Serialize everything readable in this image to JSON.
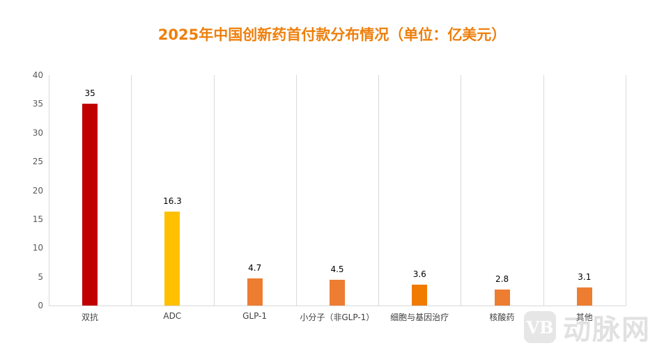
{
  "title": "2025年中国创新药首付款分布情况（单位：亿美元）",
  "watermark": {
    "logo": "VB",
    "text": "动脉网"
  },
  "chart_data": {
    "type": "bar",
    "title": "2025年中国创新药首付款分布情况（单位：亿美元）",
    "xlabel": "",
    "ylabel": "",
    "ylim": [
      0,
      40
    ],
    "yticks": [
      0,
      5,
      10,
      15,
      20,
      25,
      30,
      35,
      40
    ],
    "grid": "vertical",
    "legend": "none",
    "categories": [
      "双抗",
      "ADC",
      "GLP-1",
      "小分子（非GLP-1）",
      "细胞与基因治疗",
      "核酸药",
      "其他"
    ],
    "values": [
      35,
      16.3,
      4.7,
      4.5,
      3.6,
      2.8,
      3.1
    ],
    "value_labels": [
      "35",
      "16.3",
      "4.7",
      "4.5",
      "3.6",
      "2.8",
      "3.1"
    ],
    "colors": [
      "#C00000",
      "#FFC000",
      "#ED7D31",
      "#ED7D31",
      "#F07B00",
      "#ED7D31",
      "#ED7D31"
    ]
  }
}
